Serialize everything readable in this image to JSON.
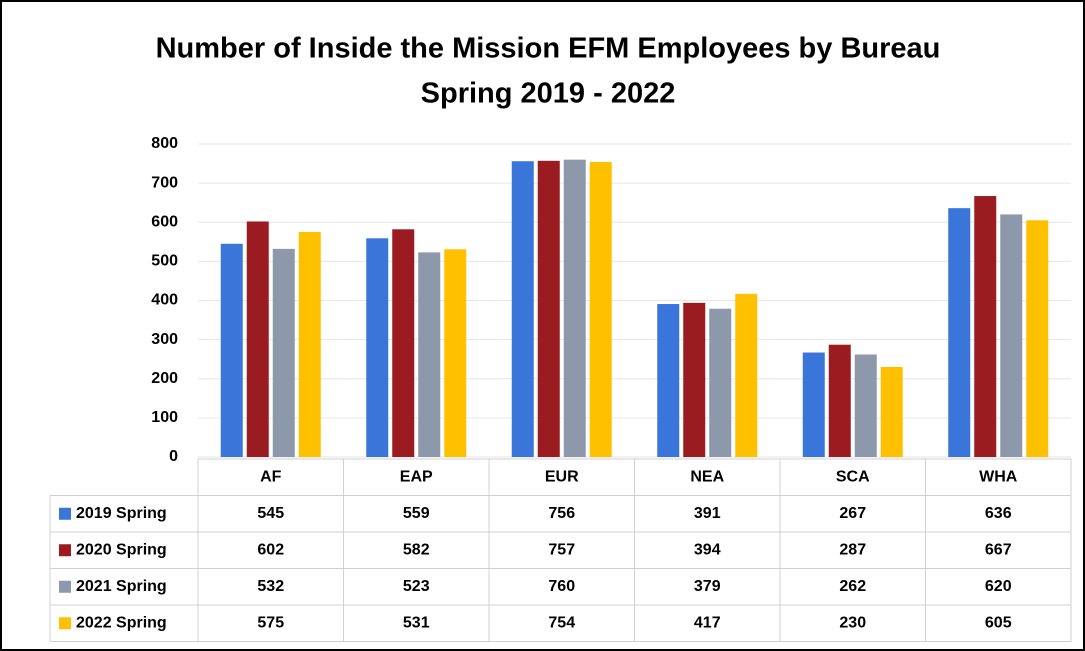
{
  "chart_data": {
    "type": "bar",
    "title": "Number of Inside the Mission EFM Employees by Bureau",
    "subtitle": "Spring 2019 - 2022",
    "categories": [
      "AF",
      "EAP",
      "EUR",
      "NEA",
      "SCA",
      "WHA"
    ],
    "series": [
      {
        "name": "2019 Spring",
        "color": "#3a75d9",
        "values": [
          545,
          559,
          756,
          391,
          267,
          636
        ]
      },
      {
        "name": "2020 Spring",
        "color": "#9b1c20",
        "values": [
          602,
          582,
          757,
          394,
          287,
          667
        ]
      },
      {
        "name": "2021 Spring",
        "color": "#8d99aa",
        "values": [
          532,
          523,
          760,
          379,
          262,
          620
        ]
      },
      {
        "name": "2022 Spring",
        "color": "#ffc000",
        "values": [
          575,
          531,
          754,
          417,
          230,
          605
        ]
      }
    ],
    "ylim": [
      0,
      800
    ],
    "yticks": [
      0,
      100,
      200,
      300,
      400,
      500,
      600,
      700,
      800
    ],
    "grid": true,
    "data_table": true
  }
}
